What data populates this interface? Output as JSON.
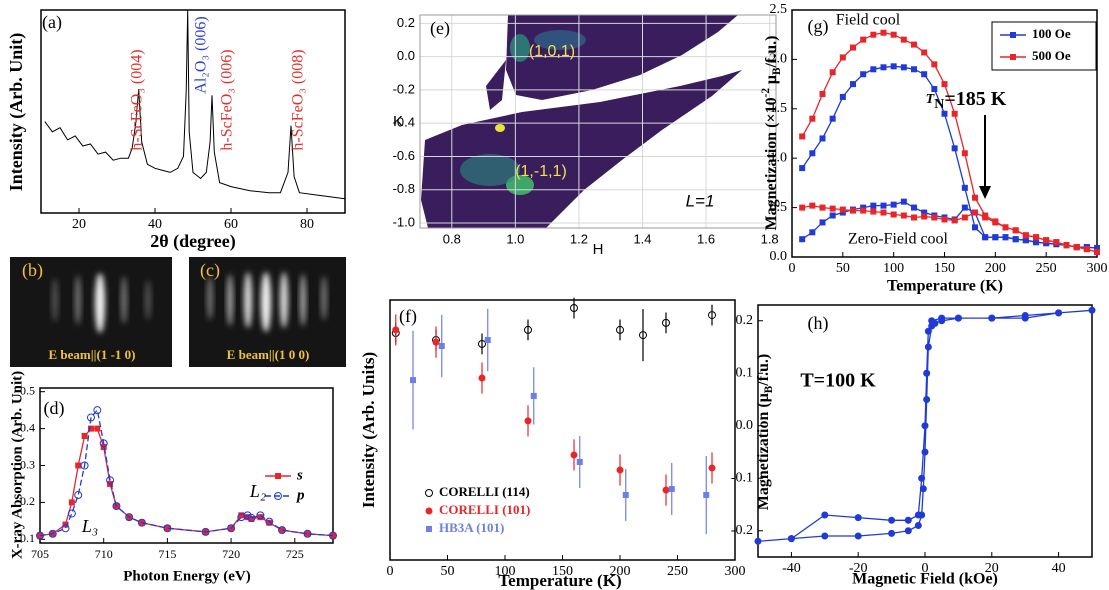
{
  "chart_data": [
    {
      "type": "line",
      "panel_label": "(a)",
      "ylabel": "Intensity (Arb. Unit)",
      "xlabel": "2θ (degree)",
      "xlim": [
        10,
        90
      ],
      "xticks": [
        20,
        40,
        60,
        80
      ],
      "ylim": [
        0,
        1
      ],
      "series": [
        {
          "color": "#000000",
          "x": [
            11,
            13,
            15,
            17,
            19,
            21,
            23,
            25,
            27,
            29,
            31,
            33,
            34,
            35,
            35.7,
            36.5,
            38,
            40,
            42,
            44,
            46,
            47.5,
            48.2,
            48.6,
            49,
            50,
            52,
            53.5,
            54.5,
            55,
            55.6,
            57,
            60,
            65,
            70,
            73,
            75,
            75.8,
            76.6,
            78,
            82,
            86,
            90
          ],
          "values": [
            0.45,
            0.4,
            0.42,
            0.36,
            0.38,
            0.33,
            0.34,
            0.29,
            0.3,
            0.26,
            0.27,
            0.27,
            0.32,
            0.45,
            0.61,
            0.35,
            0.24,
            0.22,
            0.21,
            0.2,
            0.22,
            0.28,
            0.6,
            1,
            0.4,
            0.2,
            0.17,
            0.2,
            0.35,
            0.58,
            0.3,
            0.15,
            0.13,
            0.11,
            0.1,
            0.1,
            0.2,
            0.43,
            0.18,
            0.1,
            0.09,
            0.08,
            0.07
          ]
        }
      ],
      "annotations": [
        {
          "text": "h-ScFeO₃ (004)",
          "color": "#e0302a"
        },
        {
          "text": "Al₂O₃ (006)",
          "color": "#2b3fd6"
        },
        {
          "text": "h-ScFeO₃ (006)",
          "color": "#e0302a"
        },
        {
          "text": "h-ScFeO₃ (008)",
          "color": "#e0302a"
        }
      ]
    },
    {
      "type": "line",
      "panel_label": "(d)",
      "ylabel": "X-ray Absorption (Arb. Unit)",
      "xlabel": "Photon Energy (eV)",
      "xlim": [
        705,
        728
      ],
      "xticks": [
        705,
        710,
        715,
        720,
        725
      ],
      "ylim": [
        0.09,
        0.51
      ],
      "yticks": [
        0.1,
        0.2,
        0.3,
        0.4,
        0.5
      ],
      "series": [
        {
          "name": "s",
          "color": "#e8262a",
          "marker": "square",
          "x": [
            705,
            706,
            707,
            707.5,
            708,
            708.5,
            709,
            709.5,
            710,
            710.5,
            711,
            712,
            713,
            715,
            718,
            720,
            720.8,
            721.3,
            721.6,
            722.3,
            723,
            724,
            726,
            728
          ],
          "values": [
            0.11,
            0.115,
            0.14,
            0.2,
            0.3,
            0.38,
            0.4,
            0.4,
            0.35,
            0.25,
            0.19,
            0.16,
            0.145,
            0.13,
            0.12,
            0.13,
            0.165,
            0.16,
            0.155,
            0.16,
            0.145,
            0.125,
            0.115,
            0.11
          ]
        },
        {
          "name": "p",
          "color": "#1f3ad6",
          "marker": "circle-open",
          "dash": true,
          "x": [
            705,
            706,
            707,
            707.5,
            708,
            708.5,
            709,
            709.5,
            710,
            710.5,
            711,
            712,
            713,
            715,
            718,
            720,
            720.8,
            721.3,
            721.6,
            722.3,
            723,
            724,
            726,
            728
          ],
          "values": [
            0.11,
            0.115,
            0.13,
            0.17,
            0.22,
            0.3,
            0.43,
            0.45,
            0.36,
            0.26,
            0.19,
            0.16,
            0.145,
            0.13,
            0.12,
            0.13,
            0.16,
            0.165,
            0.158,
            0.165,
            0.148,
            0.125,
            0.115,
            0.11
          ]
        }
      ],
      "annotations": [
        {
          "text": "L₃",
          "color": "#000000"
        },
        {
          "text": "L₂",
          "color": "#000000"
        }
      ]
    },
    {
      "type": "contour",
      "panel_label": "(e)",
      "xlabel": "H",
      "ylabel": "K",
      "grid": true,
      "xlim": [
        0.7,
        1.82
      ],
      "xticks": [
        0.8,
        {
          "value": 1,
          "label": "1.0"
        },
        1.2,
        1.4,
        1.6,
        1.8
      ],
      "ylim": [
        -1.03,
        0.25
      ],
      "yticks": [
        0.2,
        {
          "value": 0,
          "label": "0.0"
        },
        -0.2,
        -0.4,
        -0.6,
        -0.8,
        {
          "value": -1,
          "label": "-1.0"
        }
      ],
      "annotations": [
        {
          "text": "(1,0,1)",
          "color": "#f2e14a"
        },
        {
          "text": "(1,-1,1)",
          "color": "#f2e14a"
        },
        {
          "text": "L=1",
          "color": "#000000"
        }
      ]
    },
    {
      "type": "scatter",
      "panel_label": "(f)",
      "ylabel": "Intensity (Arb. Units)",
      "xlabel": "Temperature (K)",
      "xlim": [
        0,
        300
      ],
      "xticks": [
        0,
        50,
        100,
        150,
        200,
        250,
        300
      ],
      "ylim": [
        0,
        1
      ],
      "series": [
        {
          "name": "CORELLI (114)",
          "color": "#000000",
          "marker": "circle-open",
          "x": [
            5,
            40,
            80,
            120,
            160,
            200,
            220,
            240,
            280
          ],
          "values": [
            0.873,
            0.846,
            0.831,
            0.885,
            0.969,
            0.885,
            0.865,
            0.912,
            0.942
          ],
          "errors": [
            0.04,
            0.04,
            0.04,
            0.04,
            0.04,
            0.04,
            0.1,
            0.04,
            0.04
          ]
        },
        {
          "name": "CORELLI (101)",
          "color": "#e8262a",
          "marker": "circle",
          "x": [
            5,
            40,
            80,
            120,
            160,
            200,
            240,
            280
          ],
          "values": [
            0.885,
            0.838,
            0.7,
            0.535,
            0.404,
            0.346,
            0.269,
            0.354
          ],
          "errors": [
            0.06,
            0.06,
            0.06,
            0.06,
            0.06,
            0.06,
            0.06,
            0.06
          ]
        },
        {
          "name": "HB3A (101)",
          "color": "#6d7fe6",
          "marker": "square",
          "x": [
            20,
            45,
            85,
            125,
            165,
            205,
            245,
            275
          ],
          "values": [
            0.692,
            0.823,
            0.846,
            0.631,
            0.377,
            0.25,
            0.273,
            0.25
          ],
          "errors": [
            0.19,
            0.12,
            0.12,
            0.11,
            0.1,
            0.1,
            0.1,
            0.15
          ]
        }
      ]
    },
    {
      "type": "line",
      "panel_label": "(g)",
      "ylabel": [
        "Magnetization (×10",
        "-2",
        " μ",
        "B",
        "/f.u.)"
      ],
      "xlabel": "Temperature (K)",
      "xlim": [
        0,
        300
      ],
      "xticks": [
        0,
        50,
        100,
        150,
        200,
        250,
        300
      ],
      "ylim": [
        0,
        2.5
      ],
      "yticks": [
        {
          "value": 0,
          "label": "0.0"
        },
        0.5,
        {
          "value": 1,
          "label": "1.0"
        },
        1.5,
        {
          "value": 2,
          "label": "2.0"
        },
        2.5
      ],
      "x": [
        10,
        20,
        30,
        40,
        50,
        60,
        70,
        80,
        90,
        100,
        110,
        120,
        130,
        140,
        150,
        160,
        170,
        180,
        190,
        200,
        210,
        220,
        230,
        240,
        250,
        260,
        270,
        280,
        290,
        300
      ],
      "series": [
        {
          "name": "100 Oe",
          "color": "#1f3ad6",
          "marker": "square",
          "values": [
            0.9,
            1.05,
            1.2,
            1.4,
            1.62,
            1.75,
            1.85,
            1.9,
            1.92,
            1.93,
            1.92,
            1.9,
            1.85,
            1.7,
            1.45,
            1.1,
            0.7,
            0.3,
            0.2,
            0.2,
            0.2,
            0.18,
            0.17,
            0.15,
            0.14,
            0.13,
            0.12,
            0.1,
            0.1,
            0.09
          ],
          "zfc_values": [
            0.18,
            0.25,
            0.35,
            0.42,
            0.45,
            0.48,
            0.5,
            0.52,
            0.52,
            0.53,
            0.56,
            0.5,
            0.45,
            0.42,
            0.4,
            0.38,
            0.5,
            0.45,
            0.2,
            0.2,
            0.2,
            0.18,
            0.17,
            0.15,
            0.14,
            0.13,
            0.12,
            0.1,
            0.1,
            0.09
          ]
        },
        {
          "name": "500 Oe",
          "color": "#e8262a",
          "marker": "square",
          "values": [
            1.22,
            1.4,
            1.65,
            1.87,
            2.02,
            2.12,
            2.2,
            2.25,
            2.27,
            2.25,
            2.2,
            2.15,
            2.07,
            1.95,
            1.75,
            1.45,
            1.05,
            0.6,
            0.42,
            0.36,
            0.3,
            0.27,
            0.22,
            0.2,
            0.17,
            0.15,
            0.12,
            0.1,
            0.08,
            0.05
          ],
          "zfc_values": [
            0.5,
            0.52,
            0.5,
            0.49,
            0.48,
            0.47,
            0.47,
            0.46,
            0.45,
            0.43,
            0.42,
            0.4,
            0.41,
            0.4,
            0.38,
            0.37,
            0.4,
            0.45,
            0.4,
            0.35,
            0.3,
            0.27,
            0.22,
            0.2,
            0.17,
            0.15,
            0.12,
            0.1,
            0.08,
            0.05
          ]
        }
      ],
      "annotations": [
        {
          "text": "Field cool",
          "color": "#000000"
        },
        {
          "text": "Zero-Field cool",
          "color": "#000000"
        },
        {
          "text": [
            "T",
            "N",
            "=185 K"
          ],
          "color": "#000000"
        }
      ]
    },
    {
      "type": "line",
      "panel_label": "(h)",
      "ylabel": [
        "Magnetization (μ",
        "B",
        "/f.u.)"
      ],
      "xlabel": "Magnetic Field (kOe)",
      "xlim": [
        -50,
        50
      ],
      "xticks": [
        -40,
        -20,
        0,
        20,
        40
      ],
      "ylim": [
        -0.25,
        0.23
      ],
      "yticks": [
        -0.2,
        -0.1,
        {
          "value": 0,
          "label": "0.0"
        },
        0.1,
        0.2
      ],
      "series": [
        {
          "color": "#1f3ad6",
          "marker": "circle",
          "x": [
            50,
            40,
            30,
            20,
            10,
            5,
            3,
            2,
            1,
            0.5,
            0,
            -0.5,
            -1,
            -2,
            -5,
            -10,
            -20,
            -30,
            -40,
            -50,
            -40,
            -30,
            -20,
            -10,
            -5,
            -2,
            -1,
            0,
            0.5,
            1,
            2,
            5,
            10,
            20,
            30,
            40
          ],
          "values": [
            0.22,
            0.215,
            0.21,
            0.205,
            0.205,
            0.2,
            0.195,
            0.19,
            0.15,
            0.05,
            -0.05,
            -0.12,
            -0.17,
            -0.19,
            -0.2,
            -0.205,
            -0.21,
            -0.21,
            -0.215,
            -0.22,
            -0.215,
            -0.17,
            -0.175,
            -0.18,
            -0.18,
            -0.17,
            -0.1,
            0,
            0.1,
            0.18,
            0.2,
            0.205,
            0.205,
            0.205,
            0.205,
            0.215
          ]
        }
      ],
      "annotations": [
        {
          "text": "T=100 K",
          "color": "#000000"
        }
      ]
    }
  ],
  "images": [
    {
      "label": "(b)",
      "caption": "E beam||(1 -1 0)"
    },
    {
      "label": "(c)",
      "caption": "E beam||(1 0 0)"
    }
  ]
}
